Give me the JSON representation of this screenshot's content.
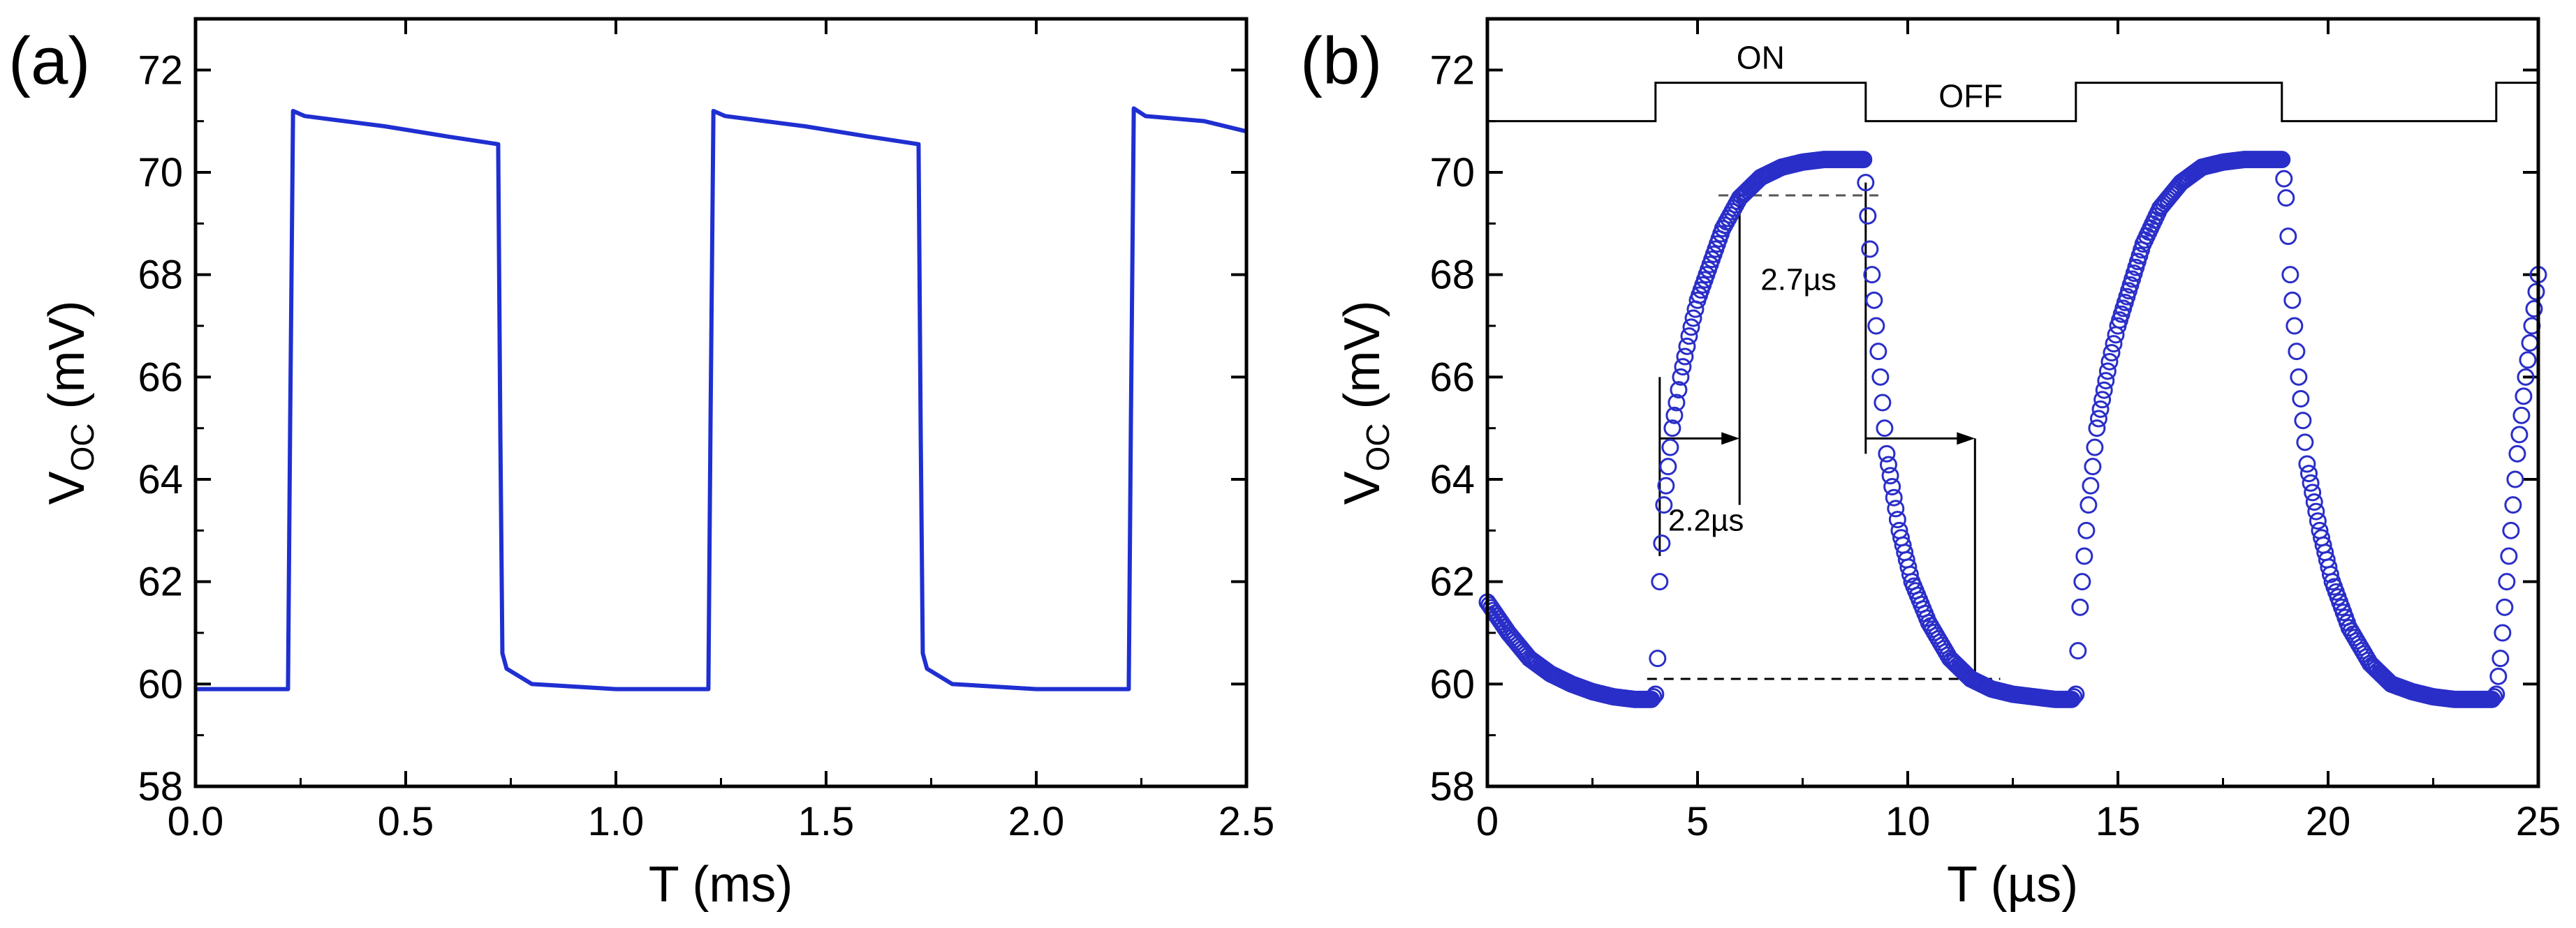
{
  "chart_data": [
    {
      "panel": "(a)",
      "type": "line",
      "xlabel": "T (ms)",
      "ylabel": "V",
      "ylabel_sub": "OC",
      "ylabel_unit": " (mV)",
      "xlim": [
        0.0,
        2.5
      ],
      "ylim": [
        58,
        73
      ],
      "xticks": [
        0.0,
        0.5,
        1.0,
        1.5,
        2.0,
        2.5
      ],
      "xtick_labels": [
        "0.0",
        "0.5",
        "1.0",
        "1.5",
        "2.0",
        "2.5"
      ],
      "yticks": [
        58,
        60,
        62,
        64,
        66,
        68,
        70,
        72
      ],
      "ytick_labels": [
        "58",
        "60",
        "62",
        "64",
        "66",
        "68",
        "70",
        "72"
      ],
      "color": "#1f2fd1",
      "series": [
        {
          "name": "Voc",
          "x": [
            0.0,
            0.22,
            0.225,
            0.232,
            0.26,
            0.45,
            0.6,
            0.72,
            0.725,
            0.73,
            0.74,
            0.8,
            0.9,
            1.0,
            1.1,
            1.22,
            1.225,
            1.232,
            1.26,
            1.45,
            1.6,
            1.72,
            1.725,
            1.73,
            1.74,
            1.8,
            1.9,
            2.0,
            2.1,
            2.22,
            2.225,
            2.232,
            2.26,
            2.4,
            2.5
          ],
          "y": [
            59.9,
            59.9,
            65.0,
            71.2,
            71.1,
            70.9,
            70.7,
            70.55,
            65.0,
            60.6,
            60.3,
            60.0,
            59.95,
            59.9,
            59.9,
            59.9,
            65.0,
            71.2,
            71.1,
            70.9,
            70.7,
            70.55,
            65.0,
            60.6,
            60.3,
            60.0,
            59.95,
            59.9,
            59.9,
            59.9,
            65.0,
            71.25,
            71.1,
            71.0,
            70.8
          ]
        }
      ]
    },
    {
      "panel": "(b)",
      "type": "scatter",
      "xlabel": "T (µs)",
      "ylabel": "V",
      "ylabel_sub": "OC",
      "ylabel_unit": " (mV)",
      "xlim": [
        0,
        25
      ],
      "ylim": [
        58,
        73
      ],
      "xticks": [
        0,
        5,
        10,
        15,
        20,
        25
      ],
      "xtick_labels": [
        "0",
        "5",
        "10",
        "15",
        "20",
        "25"
      ],
      "yticks": [
        58,
        60,
        62,
        64,
        66,
        68,
        70,
        72
      ],
      "ytick_labels": [
        "58",
        "60",
        "62",
        "64",
        "66",
        "68",
        "70",
        "72"
      ],
      "color": "#2a2ec8",
      "square_wave": {
        "label_on": "ON",
        "label_off": "OFF",
        "low": 71.0,
        "high": 71.75,
        "on_intervals": [
          [
            4.0,
            9.0
          ],
          [
            14.0,
            18.9
          ],
          [
            24.0,
            25.0
          ]
        ]
      },
      "annotations": {
        "rise_time": "2.2µs",
        "fall_time": "2.7µs",
        "upper_level": 69.55,
        "lower_level": 60.1,
        "rise_start": 4.1,
        "rise_end": 6.3,
        "fall_start": 9.0,
        "fall_end": 11.6
      },
      "series": [
        {
          "name": "Voc",
          "x": [
            0.0,
            0.5,
            1.0,
            1.5,
            2.0,
            2.5,
            3.0,
            3.5,
            3.9,
            4.0,
            4.05,
            4.1,
            4.2,
            4.4,
            4.6,
            4.8,
            5.0,
            5.3,
            5.6,
            6.0,
            6.5,
            7.0,
            7.5,
            8.0,
            8.5,
            8.95,
            9.0,
            9.1,
            9.3,
            9.5,
            9.8,
            10.1,
            10.5,
            11.0,
            11.5,
            12.0,
            12.5,
            13.0,
            13.5,
            13.9,
            14.0,
            14.1,
            14.3,
            14.5,
            14.8,
            15.0,
            15.3,
            15.6,
            16.0,
            16.5,
            17.0,
            17.5,
            18.0,
            18.5,
            18.9,
            19.0,
            19.1,
            19.3,
            19.5,
            19.8,
            20.1,
            20.5,
            21.0,
            21.5,
            22.0,
            22.5,
            23.0,
            23.5,
            23.9,
            24.0,
            24.1,
            24.3,
            24.5,
            24.7,
            24.85,
            25.0
          ],
          "y": [
            61.6,
            61.0,
            60.5,
            60.2,
            60.0,
            59.85,
            59.75,
            59.7,
            59.7,
            59.8,
            60.5,
            62.0,
            63.5,
            65.0,
            66.0,
            66.8,
            67.5,
            68.2,
            68.9,
            69.5,
            69.9,
            70.1,
            70.2,
            70.25,
            70.25,
            70.25,
            69.8,
            68.5,
            66.5,
            64.5,
            63.0,
            62.0,
            61.2,
            60.5,
            60.1,
            59.9,
            59.8,
            59.75,
            59.7,
            59.7,
            59.8,
            61.5,
            63.5,
            65.0,
            66.3,
            67.0,
            67.8,
            68.6,
            69.3,
            69.8,
            70.1,
            70.2,
            70.25,
            70.25,
            70.25,
            69.5,
            68.0,
            66.0,
            64.3,
            63.0,
            62.0,
            61.1,
            60.4,
            60.0,
            59.85,
            59.75,
            59.7,
            59.7,
            59.7,
            59.8,
            60.5,
            62.5,
            64.5,
            66.0,
            67.0,
            68.0
          ]
        }
      ]
    }
  ]
}
